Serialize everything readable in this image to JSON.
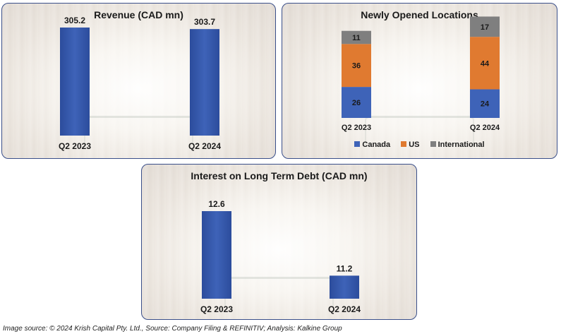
{
  "colors": {
    "bar_blue": "#3e63b8",
    "canada": "#3e63b8",
    "us": "#e07a30",
    "international": "#7f7f7f",
    "border": "#3a4f8a"
  },
  "chart_data": [
    {
      "id": "revenue",
      "type": "bar",
      "title": "Revenue (CAD mn)",
      "categories": [
        "Q2 2023",
        "Q2 2024"
      ],
      "values": [
        305.2,
        303.7
      ],
      "data_labels": [
        "305.2",
        "303.7"
      ],
      "ylim": [
        200,
        310
      ]
    },
    {
      "id": "locations",
      "type": "bar",
      "stacked": true,
      "title": "Newly Opened Locations",
      "categories": [
        "Q2 2023",
        "Q2 2024"
      ],
      "series": [
        {
          "name": "Canada",
          "values": [
            26,
            24
          ]
        },
        {
          "name": "US",
          "values": [
            36,
            44
          ]
        },
        {
          "name": "International",
          "values": [
            11,
            17
          ]
        }
      ],
      "ylim": [
        0,
        90
      ],
      "legend": "bottom"
    },
    {
      "id": "interest",
      "type": "bar",
      "title": "Interest on Long Term Debt (CAD mn)",
      "categories": [
        "Q2 2023",
        "Q2 2024"
      ],
      "values": [
        12.6,
        11.2
      ],
      "data_labels": [
        "12.6",
        "11.2"
      ],
      "ylim": [
        10.7,
        12.6
      ]
    }
  ],
  "legend": {
    "canada": "Canada",
    "us": "US",
    "international": "International"
  },
  "source": "Image source: © 2024 Krish Capital Pty. Ltd., Source: Company Filing & REFINITIV; Analysis: Kalkine Group"
}
